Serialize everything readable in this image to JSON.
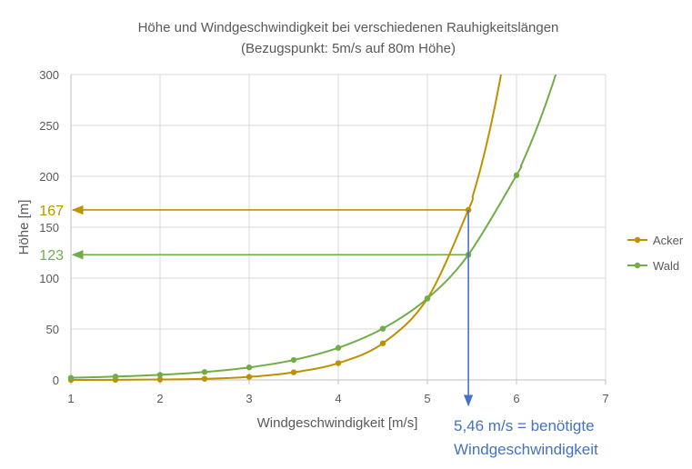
{
  "chart_data": {
    "type": "line",
    "title": "Höhe und Windgeschwindigkeit bei verschiedenen Rauhigkeitslängen",
    "subtitle": "(Bezugspunkt: 5m/s auf 80m Höhe)",
    "xlabel": "Windgeschwindigkeit [m/s]",
    "ylabel": "Höhe [m]",
    "xlim": [
      1,
      7
    ],
    "ylim": [
      0,
      300
    ],
    "xticks": [
      "1",
      "2",
      "3",
      "4",
      "5",
      "6",
      "7"
    ],
    "yticks": [
      "0",
      "50",
      "100",
      "150",
      "200",
      "250",
      "300"
    ],
    "grid": true,
    "legend_position": "right",
    "series": [
      {
        "name": "Acker",
        "color": "#BF9000",
        "x": [
          1,
          1.5,
          2,
          2.5,
          3,
          3.5,
          4,
          4.5,
          5,
          5.46
        ],
        "y": [
          0.0,
          0.1,
          0.4,
          1.1,
          3.0,
          7.5,
          16.5,
          36.0,
          80.0,
          167.0
        ]
      },
      {
        "name": "Wald",
        "color": "#70AD47",
        "x": [
          1,
          1.5,
          2,
          2.5,
          3,
          3.5,
          4,
          4.5,
          5,
          5.46,
          6
        ],
        "y": [
          2.1,
          3.3,
          5.0,
          7.8,
          12.3,
          19.6,
          31.5,
          50.4,
          80.0,
          123.0,
          201.0
        ]
      }
    ],
    "reference_lines": [
      {
        "label": "167",
        "y": 167,
        "x": 5.46,
        "color": "#BF9000"
      },
      {
        "label": "123",
        "y": 123,
        "x": 5.46,
        "color": "#70AD47"
      }
    ],
    "vertical_marker": {
      "x": 5.46,
      "color": "#4472C4",
      "annotation_line1": "5,46 m/s = benötigte",
      "annotation_line2": "Windgeschwindigkeit"
    }
  }
}
